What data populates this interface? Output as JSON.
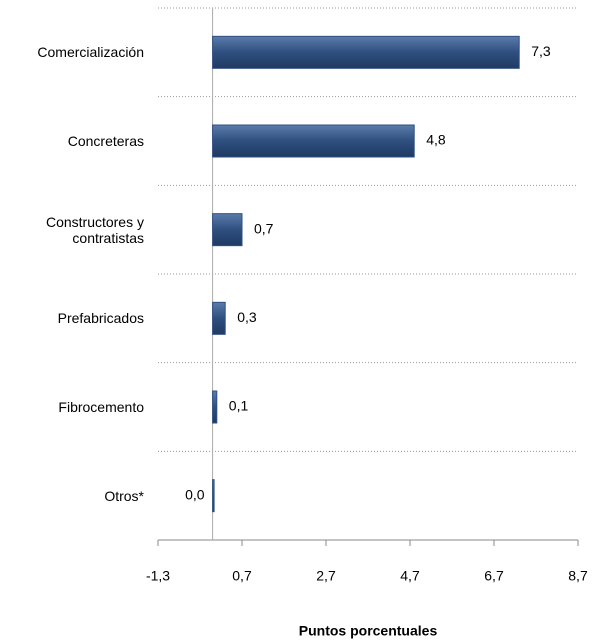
{
  "chart_data": {
    "type": "bar",
    "orientation": "horizontal",
    "categories": [
      "Comercialización",
      "Concreteras",
      "Constructores y contratistas",
      "Prefabricados",
      "Fibrocemento",
      "Otros*"
    ],
    "values": [
      7.3,
      4.8,
      0.7,
      0.3,
      0.1,
      0.0
    ],
    "value_labels": [
      "7,3",
      "4,8",
      "0,7",
      "0,3",
      "0,1",
      "0,0"
    ],
    "color": "#2f4f7f",
    "xlim": [
      -1.3,
      8.7
    ],
    "xticks": [
      {
        "value": -1.3,
        "label": "-1,3"
      },
      {
        "value": 0.7,
        "label": "0,7"
      },
      {
        "value": 2.7,
        "label": "2,7"
      },
      {
        "value": 4.7,
        "label": "4,7"
      },
      {
        "value": 6.7,
        "label": "6,7"
      },
      {
        "value": 8.7,
        "label": "8,7"
      }
    ],
    "xlabel": "Puntos porcentuales",
    "grid": true
  }
}
